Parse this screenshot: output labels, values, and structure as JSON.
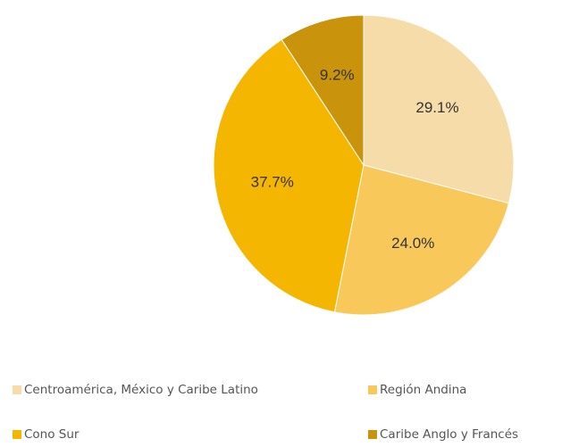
{
  "chart_data": {
    "type": "pie",
    "categories": [
      "Centroamérica, México y Caribe Latino",
      "Región Andina",
      "Cono Sur",
      "Caribe Anglo y Francés"
    ],
    "values": [
      29.1,
      24.0,
      37.7,
      9.2
    ],
    "value_labels": [
      "29.1%",
      "24.0%",
      "37.7%",
      "9.2%"
    ],
    "colors": [
      "#f6dca8",
      "#f8c95a",
      "#f4b600",
      "#c9930c"
    ],
    "legend": "bottom"
  }
}
